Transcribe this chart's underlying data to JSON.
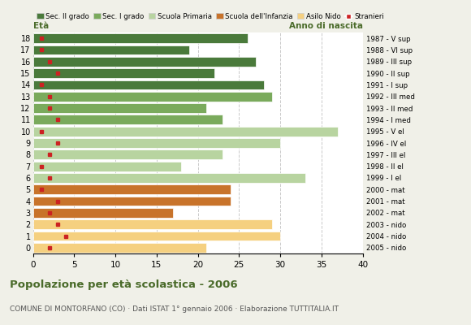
{
  "ages": [
    18,
    17,
    16,
    15,
    14,
    13,
    12,
    11,
    10,
    9,
    8,
    7,
    6,
    5,
    4,
    3,
    2,
    1,
    0
  ],
  "values": [
    26,
    19,
    27,
    22,
    28,
    29,
    21,
    23,
    37,
    30,
    23,
    18,
    33,
    24,
    24,
    17,
    29,
    30,
    21
  ],
  "stranieri": [
    1,
    1,
    2,
    3,
    1,
    2,
    2,
    3,
    1,
    3,
    2,
    1,
    2,
    1,
    3,
    2,
    3,
    4,
    2
  ],
  "bar_colors": [
    "#4a7a3b",
    "#4a7a3b",
    "#4a7a3b",
    "#4a7a3b",
    "#4a7a3b",
    "#7aaa5c",
    "#7aaa5c",
    "#7aaa5c",
    "#b8d4a0",
    "#b8d4a0",
    "#b8d4a0",
    "#b8d4a0",
    "#b8d4a0",
    "#c8732a",
    "#c8732a",
    "#c8732a",
    "#f5d080",
    "#f5d080",
    "#f5d080"
  ],
  "right_labels": [
    "1987 - V sup",
    "1988 - VI sup",
    "1989 - III sup",
    "1990 - II sup",
    "1991 - I sup",
    "1992 - III med",
    "1993 - II med",
    "1994 - I med",
    "1995 - V el",
    "1996 - IV el",
    "1997 - III el",
    "1998 - II el",
    "1999 - I el",
    "2000 - mat",
    "2001 - mat",
    "2002 - mat",
    "2003 - nido",
    "2004 - nido",
    "2005 - nido"
  ],
  "legend_labels": [
    "Sec. II grado",
    "Sec. I grado",
    "Scuola Primaria",
    "Scuola dell'Infanzia",
    "Asilo Nido",
    "Stranieri"
  ],
  "legend_colors": [
    "#4a7a3b",
    "#7aaa5c",
    "#b8d4a0",
    "#c8732a",
    "#f5d080",
    "#cc2222"
  ],
  "title": "Popolazione per età scolastica - 2006",
  "subtitle": "COMUNE DI MONTORFANO (CO) · Dati ISTAT 1° gennaio 2006 · Elaborazione TUTTITALIA.IT",
  "xlabel_eta": "Età",
  "xlabel_anno": "Anno di nascita",
  "xlim": [
    0,
    40
  ],
  "xticks": [
    0,
    5,
    10,
    15,
    20,
    25,
    30,
    35,
    40
  ],
  "bg_color": "#f0f0e8",
  "plot_bg_color": "#ffffff",
  "stranieri_color": "#cc2222",
  "bar_height": 0.82
}
